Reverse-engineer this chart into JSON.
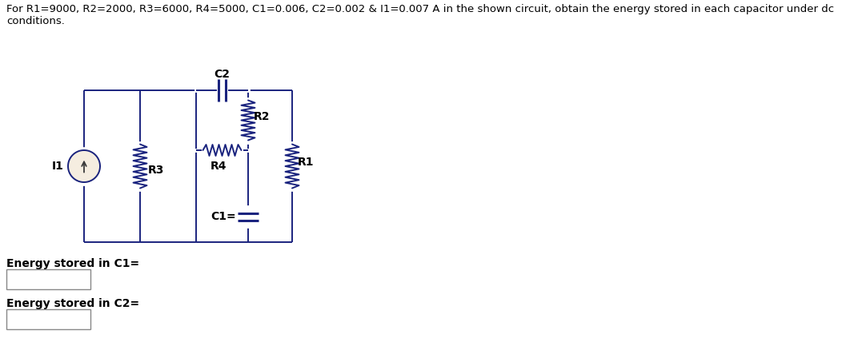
{
  "title_line1": "For R1=9000, R2=2000, R3=6000, R4=5000, C1=0.006, C2=0.002 & I1=0.007 A in the shown circuit, obtain the energy stored in each capacitor under dc",
  "title_line2": "conditions.",
  "label_C2": "C2",
  "label_R4": "R4",
  "label_R2": "R2",
  "label_R1": "R1",
  "label_R3": "R3",
  "label_I1": "I1",
  "label_C1": "C1=",
  "label_energy_c1": "Energy stored in C1=",
  "label_energy_c2": "Energy stored in C2=",
  "bg_color": "#ffffff",
  "circuit_color": "#1a237e",
  "text_color": "#000000",
  "title_fontsize": 9.5,
  "label_fontsize": 10,
  "energy_label_fontsize": 10
}
